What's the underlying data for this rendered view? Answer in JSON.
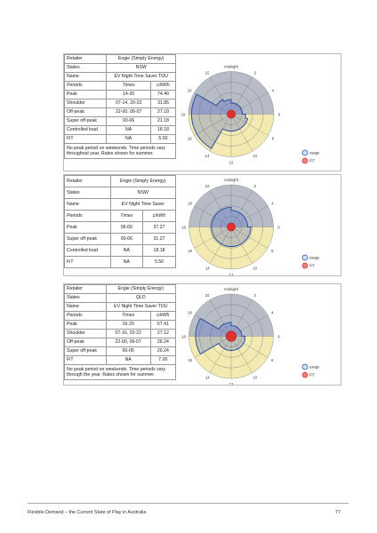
{
  "blocks": [
    {
      "retailer_label": "Retailer",
      "retailer": "Engie (Simply Energy)",
      "states_label": "States",
      "states": "NSW",
      "name_label": "Name",
      "name": "EV Night Time Saver TOU",
      "head": [
        "Periods",
        "Times",
        "c/kWh"
      ],
      "rows": [
        [
          "Peak",
          "14-20",
          "74.40"
        ],
        [
          "Shoulder",
          "07-14, 20-22",
          "31.85"
        ],
        [
          "Off-peak",
          "22-00, 06-07",
          "27.18"
        ],
        [
          "Super off-peak",
          "00-06",
          "21.18"
        ],
        [
          "Controlled load",
          "NA",
          "18.18"
        ],
        [
          "FiT",
          "NA",
          "5.50"
        ]
      ],
      "note": "No peak period on weekends. Time periods vary throughout year. Rates shown for summer.",
      "chart": {
        "labels": [
          "midnight",
          "2",
          "4",
          "6",
          "8",
          "10",
          "12",
          "14",
          "16",
          "18",
          "20",
          "22"
        ],
        "legend_usage": "usage",
        "legend_fit": "FiT",
        "usage_by_hour": [
          21.18,
          21.18,
          21.18,
          21.18,
          21.18,
          21.18,
          27.18,
          31.85,
          31.85,
          31.85,
          31.85,
          31.85,
          31.85,
          31.85,
          74.4,
          74.4,
          74.4,
          74.4,
          74.4,
          74.4,
          31.85,
          31.85,
          27.18,
          27.18
        ],
        "fit": 5.5
      }
    },
    {
      "retailer_label": "Retailer",
      "retailer": "Engie (Simply Energy)",
      "states_label": "States",
      "states": "NSW",
      "name_label": "Name",
      "name": "EV Night Time Saver",
      "head": [
        "Periods",
        "Times",
        "c/kWh"
      ],
      "rows": [
        [
          "Peak",
          "06-00",
          "37.27"
        ],
        [
          "Super off-peak",
          "00-06",
          "31.27"
        ],
        [
          "Controlled load",
          "NA",
          "18.18"
        ],
        [
          "FiT",
          "NA",
          "5.50"
        ]
      ],
      "note": "",
      "chart": {
        "labels": [
          "midnight",
          "2",
          "4",
          "6",
          "8",
          "10",
          "12",
          "14",
          "16",
          "18",
          "20",
          "22"
        ],
        "legend_usage": "usage",
        "legend_fit": "FiT",
        "usage_by_hour": [
          31.27,
          31.27,
          31.27,
          31.27,
          31.27,
          31.27,
          37.27,
          37.27,
          37.27,
          37.27,
          37.27,
          37.27,
          37.27,
          37.27,
          37.27,
          37.27,
          37.27,
          37.27,
          37.27,
          37.27,
          37.27,
          37.27,
          37.27,
          37.27
        ],
        "fit": 5.5
      }
    },
    {
      "retailer_label": "Retailer",
      "retailer": "Engie (Simply Energy)",
      "states_label": "States",
      "states": "QLD",
      "name_label": "Name",
      "name": "EV Night Time Saver TOU",
      "head": [
        "Periods",
        "Times",
        "c/kWh"
      ],
      "rows": [
        [
          "Peak",
          "16-20",
          "67.41"
        ],
        [
          "Shoulder",
          "07-16, 20-22",
          "27.12"
        ],
        [
          "Off-peak",
          "22-00, 06-07",
          "26.24"
        ],
        [
          "Super off-peak",
          "00-06",
          "20.24"
        ],
        [
          "FiT",
          "NA",
          "7.00"
        ]
      ],
      "note": "No peak period on weekends. Time periods vary through the year. Rates shown for summer.",
      "chart": {
        "labels": [
          "midnight",
          "2",
          "4",
          "6",
          "8",
          "10",
          "12",
          "14",
          "16",
          "18",
          "20",
          "22"
        ],
        "legend_usage": "usage",
        "legend_fit": "FiT",
        "usage_by_hour": [
          20.24,
          20.24,
          20.24,
          20.24,
          20.24,
          20.24,
          26.24,
          27.12,
          27.12,
          27.12,
          27.12,
          27.12,
          27.12,
          27.12,
          27.12,
          27.12,
          67.41,
          67.41,
          67.41,
          67.41,
          27.12,
          27.12,
          26.24,
          26.24
        ],
        "fit": 7.0
      }
    }
  ],
  "footer": {
    "title": "Flexible Demand – the Current State of Play in Australia",
    "page": "77"
  },
  "colors": {
    "night": "#b8bcc6",
    "day": "#f3eab2",
    "usage": "#2a4fa0",
    "fit": "#e03030",
    "grid": "#777777"
  }
}
